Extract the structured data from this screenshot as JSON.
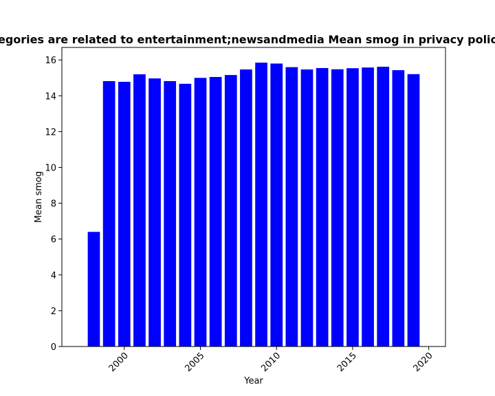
{
  "chart_data": {
    "type": "bar",
    "title": "Mean smog in privacy policies whose categories are related to entertainment;newsandmedia",
    "title_visible": "egories are related to entertainment;newsandmedia Mean smog in privacy polic",
    "xlabel": "Year",
    "ylabel": "Mean smog",
    "x": [
      1998,
      1999,
      2000,
      2001,
      2002,
      2003,
      2004,
      2005,
      2006,
      2007,
      2008,
      2009,
      2010,
      2011,
      2012,
      2013,
      2014,
      2015,
      2016,
      2017,
      2018,
      2019
    ],
    "values": [
      6.4,
      14.82,
      14.78,
      15.2,
      14.97,
      14.82,
      14.67,
      15.0,
      15.05,
      15.16,
      15.47,
      15.85,
      15.8,
      15.6,
      15.47,
      15.55,
      15.48,
      15.54,
      15.58,
      15.62,
      15.43,
      15.21
    ],
    "xlim": [
      1995.9,
      2021.1
    ],
    "ylim": [
      0,
      16.7
    ],
    "xticks": [
      2000,
      2005,
      2010,
      2015,
      2020
    ],
    "yticks": [
      0,
      2,
      4,
      6,
      8,
      10,
      12,
      14,
      16
    ],
    "bar_color": "#0000ff",
    "grid": false,
    "legend": "none"
  }
}
